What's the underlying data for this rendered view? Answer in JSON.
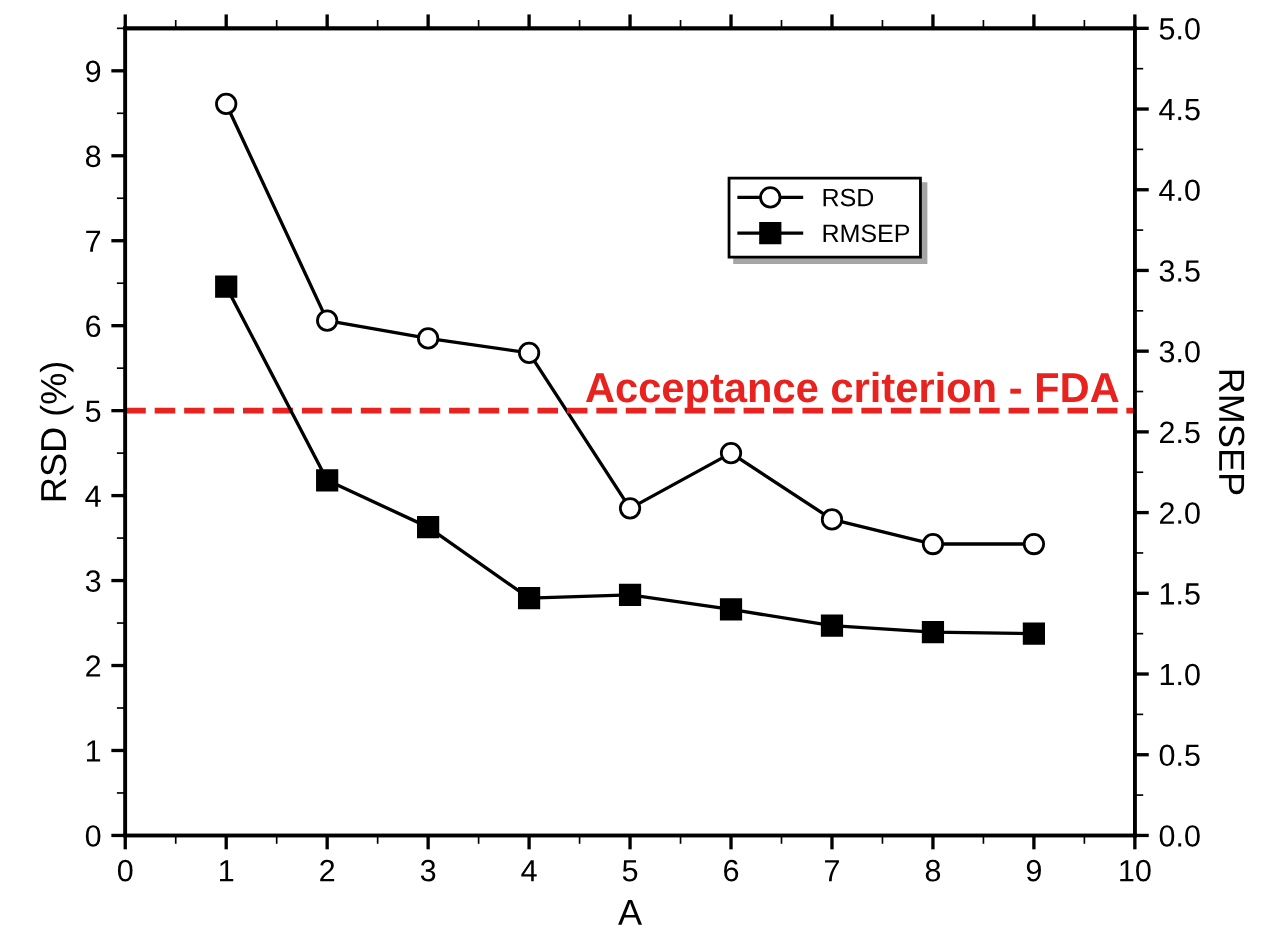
{
  "chart_data": {
    "type": "line",
    "xlabel": "A",
    "ylabel": "RSD (%)",
    "y2label": "RMSEP",
    "x": [
      1,
      2,
      3,
      4,
      5,
      6,
      7,
      8,
      9
    ],
    "xlim": [
      0,
      10
    ],
    "xticks": [
      0,
      1,
      2,
      3,
      4,
      5,
      6,
      7,
      8,
      9,
      10
    ],
    "ylim": [
      0,
      9.5
    ],
    "yticks": [
      0,
      1,
      2,
      3,
      4,
      5,
      6,
      7,
      8,
      9
    ],
    "y2lim": [
      0,
      5.0
    ],
    "y2ticks": [
      {
        "value": 0,
        "label": "0.0"
      },
      {
        "value": 0.5,
        "label": "0.5"
      },
      {
        "value": 1,
        "label": "1.0"
      },
      {
        "value": 1.5,
        "label": "1.5"
      },
      {
        "value": 2,
        "label": "2.0"
      },
      {
        "value": 2.5,
        "label": "2.5"
      },
      {
        "value": 3,
        "label": "3.0"
      },
      {
        "value": 3.5,
        "label": "3.5"
      },
      {
        "value": 4,
        "label": "4.0"
      },
      {
        "value": 4.5,
        "label": "4.5"
      },
      {
        "value": 5,
        "label": "5.0"
      }
    ],
    "series": [
      {
        "name": "RSD",
        "color": "#000000",
        "marker": "circle",
        "values": [
          8.61,
          6.06,
          5.85,
          5.68,
          3.85,
          4.5,
          3.72,
          3.43,
          3.43
        ]
      },
      {
        "name": "RMSEP",
        "color": "#000000",
        "marker": "square",
        "axis": "y2",
        "values": [
          3.4,
          2.2,
          1.91,
          1.47,
          1.49,
          1.4,
          1.3,
          1.26,
          1.25
        ]
      }
    ],
    "ref_lines": [
      {
        "axis": "y",
        "value": 5,
        "label": "Acceptance criterion - FDA",
        "color": "#e8231f",
        "line_style": "dashed"
      }
    ],
    "legend": "top right",
    "grid": false
  }
}
